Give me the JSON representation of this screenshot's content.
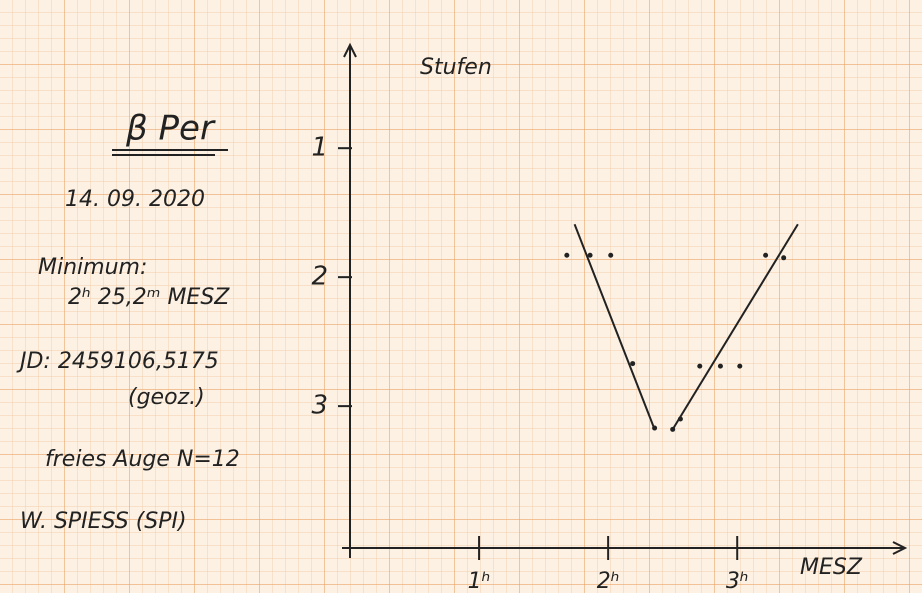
{
  "chart_data": {
    "type": "scatter",
    "title": "β Per",
    "annotations": [
      "14. 09. 2020",
      "Minimum:",
      "2ʰ 25,2ᵐ MESZ",
      "JD: 2459106,5175",
      "(geoz.)",
      "freies Auge N=12",
      "W. SPIESS (SPI)"
    ],
    "x_label": "MESZ",
    "y_label": "Stufen",
    "x": [
      1.68,
      1.86,
      2.02,
      2.19,
      2.36,
      2.5,
      2.56,
      2.71,
      2.87,
      3.02,
      3.22,
      3.36
    ],
    "values": [
      1.83,
      1.83,
      1.83,
      2.67,
      3.17,
      3.18,
      3.1,
      2.69,
      2.69,
      2.69,
      1.83,
      1.85
    ],
    "color": "#222222",
    "fit_lines": [
      {
        "x": [
          1.74,
          2.36
        ],
        "values": [
          1.59,
          3.18
        ]
      },
      {
        "x": [
          2.5,
          3.47
        ],
        "values": [
          3.18,
          1.59
        ]
      }
    ],
    "xlim": [
      0,
      4.3
    ],
    "ylim": [
      0.2,
      4.1
    ],
    "y_inverted": true,
    "xticks": [
      {
        "value": 1,
        "label": "1ʰ"
      },
      {
        "value": 2,
        "label": "2ʰ"
      },
      {
        "value": 3,
        "label": "3ʰ"
      }
    ],
    "yticks": [
      1,
      2,
      3
    ]
  }
}
